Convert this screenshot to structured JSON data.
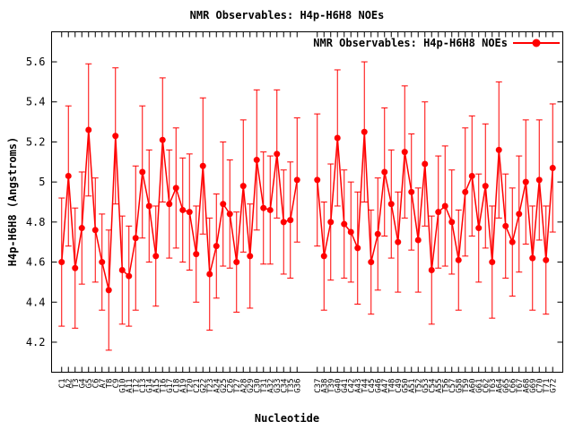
{
  "title": "NMR Observables: H4p-H6H8 NOEs",
  "chart_data": {
    "type": "scatter",
    "title": "NMR Observables: H4p-H6H8 NOEs",
    "xlabel": "Nucleotide",
    "ylabel": "H4p-H6H8 (Angstroms)",
    "legend": "NMR Observables: H4p-H6H8 NOEs",
    "legend_position": "top-right-inside",
    "grid": false,
    "marker": "filled-circle",
    "marker_color": "#ff0000",
    "line_color": "#ff0000",
    "axis_color": "#000000",
    "ylim": [
      4.05,
      5.75
    ],
    "yticks": [
      4.2,
      4.4,
      4.6,
      4.8,
      5,
      5.2,
      5.4,
      5.6
    ],
    "ytick_labels": [
      "4.2",
      "4.4",
      "4.6",
      "4.8",
      "5",
      "5.2",
      "5.4",
      "5.6"
    ],
    "series_gap_after_index": 35,
    "points": [
      {
        "label": "C1",
        "value": 4.6,
        "err": 0.32
      },
      {
        "label": "A2",
        "value": 5.03,
        "err": 0.35
      },
      {
        "label": "T3",
        "value": 4.57,
        "err": 0.3
      },
      {
        "label": "G4",
        "value": 4.77,
        "err": 0.28
      },
      {
        "label": "G5",
        "value": 5.26,
        "err": 0.33
      },
      {
        "label": "C6",
        "value": 4.76,
        "err": 0.26
      },
      {
        "label": "A7",
        "value": 4.6,
        "err": 0.24
      },
      {
        "label": "T8",
        "value": 4.46,
        "err": 0.3
      },
      {
        "label": "C9",
        "value": 5.23,
        "err": 0.34
      },
      {
        "label": "G10",
        "value": 4.56,
        "err": 0.27
      },
      {
        "label": "A11",
        "value": 4.53,
        "err": 0.25
      },
      {
        "label": "T12",
        "value": 4.72,
        "err": 0.36
      },
      {
        "label": "C13",
        "value": 5.05,
        "err": 0.33
      },
      {
        "label": "G14",
        "value": 4.88,
        "err": 0.28
      },
      {
        "label": "A15",
        "value": 4.63,
        "err": 0.25
      },
      {
        "label": "T16",
        "value": 5.21,
        "err": 0.31
      },
      {
        "label": "G17",
        "value": 4.89,
        "err": 0.27
      },
      {
        "label": "C18",
        "value": 4.97,
        "err": 0.3
      },
      {
        "label": "A19",
        "value": 4.86,
        "err": 0.26
      },
      {
        "label": "T20",
        "value": 4.85,
        "err": 0.29
      },
      {
        "label": "C21",
        "value": 4.64,
        "err": 0.24
      },
      {
        "label": "G22",
        "value": 5.08,
        "err": 0.34
      },
      {
        "label": "T23",
        "value": 4.54,
        "err": 0.28
      },
      {
        "label": "A24",
        "value": 4.68,
        "err": 0.26
      },
      {
        "label": "G25",
        "value": 4.89,
        "err": 0.31
      },
      {
        "label": "C26",
        "value": 4.84,
        "err": 0.27
      },
      {
        "label": "T27",
        "value": 4.6,
        "err": 0.25
      },
      {
        "label": "A28",
        "value": 4.98,
        "err": 0.33
      },
      {
        "label": "G29",
        "value": 4.63,
        "err": 0.26
      },
      {
        "label": "C30",
        "value": 5.11,
        "err": 0.35
      },
      {
        "label": "T31",
        "value": 4.87,
        "err": 0.28
      },
      {
        "label": "A32",
        "value": 4.86,
        "err": 0.27
      },
      {
        "label": "G33",
        "value": 5.14,
        "err": 0.32
      },
      {
        "label": "C34",
        "value": 4.8,
        "err": 0.26
      },
      {
        "label": "T35",
        "value": 4.81,
        "err": 0.29
      },
      {
        "label": "G36",
        "value": 5.01,
        "err": 0.31
      },
      {
        "label": "C37",
        "value": 5.01,
        "err": 0.33
      },
      {
        "label": "A38",
        "value": 4.63,
        "err": 0.27
      },
      {
        "label": "T39",
        "value": 4.8,
        "err": 0.29
      },
      {
        "label": "G40",
        "value": 5.22,
        "err": 0.34
      },
      {
        "label": "G41",
        "value": 4.79,
        "err": 0.27
      },
      {
        "label": "C42",
        "value": 4.75,
        "err": 0.25
      },
      {
        "label": "A43",
        "value": 4.67,
        "err": 0.28
      },
      {
        "label": "T44",
        "value": 5.25,
        "err": 0.35
      },
      {
        "label": "C45",
        "value": 4.6,
        "err": 0.26
      },
      {
        "label": "G46",
        "value": 4.74,
        "err": 0.28
      },
      {
        "label": "A47",
        "value": 5.05,
        "err": 0.32
      },
      {
        "label": "T48",
        "value": 4.89,
        "err": 0.27
      },
      {
        "label": "C49",
        "value": 4.7,
        "err": 0.25
      },
      {
        "label": "G50",
        "value": 5.15,
        "err": 0.33
      },
      {
        "label": "A51",
        "value": 4.95,
        "err": 0.29
      },
      {
        "label": "T52",
        "value": 4.71,
        "err": 0.26
      },
      {
        "label": "G53",
        "value": 5.09,
        "err": 0.31
      },
      {
        "label": "C54",
        "value": 4.56,
        "err": 0.27
      },
      {
        "label": "A55",
        "value": 4.85,
        "err": 0.28
      },
      {
        "label": "T56",
        "value": 4.88,
        "err": 0.3
      },
      {
        "label": "C57",
        "value": 4.8,
        "err": 0.26
      },
      {
        "label": "G58",
        "value": 4.61,
        "err": 0.25
      },
      {
        "label": "T59",
        "value": 4.95,
        "err": 0.32
      },
      {
        "label": "A60",
        "value": 5.03,
        "err": 0.3
      },
      {
        "label": "G61",
        "value": 4.77,
        "err": 0.27
      },
      {
        "label": "C62",
        "value": 4.98,
        "err": 0.31
      },
      {
        "label": "T63",
        "value": 4.6,
        "err": 0.28
      },
      {
        "label": "A64",
        "value": 5.16,
        "err": 0.34
      },
      {
        "label": "G65",
        "value": 4.78,
        "err": 0.26
      },
      {
        "label": "C66",
        "value": 4.7,
        "err": 0.27
      },
      {
        "label": "T67",
        "value": 4.84,
        "err": 0.29
      },
      {
        "label": "A68",
        "value": 5.0,
        "err": 0.31
      },
      {
        "label": "G69",
        "value": 4.62,
        "err": 0.26
      },
      {
        "label": "C70",
        "value": 5.01,
        "err": 0.3
      },
      {
        "label": "T71",
        "value": 4.61,
        "err": 0.27
      },
      {
        "label": "G72",
        "value": 5.07,
        "err": 0.32
      }
    ]
  }
}
